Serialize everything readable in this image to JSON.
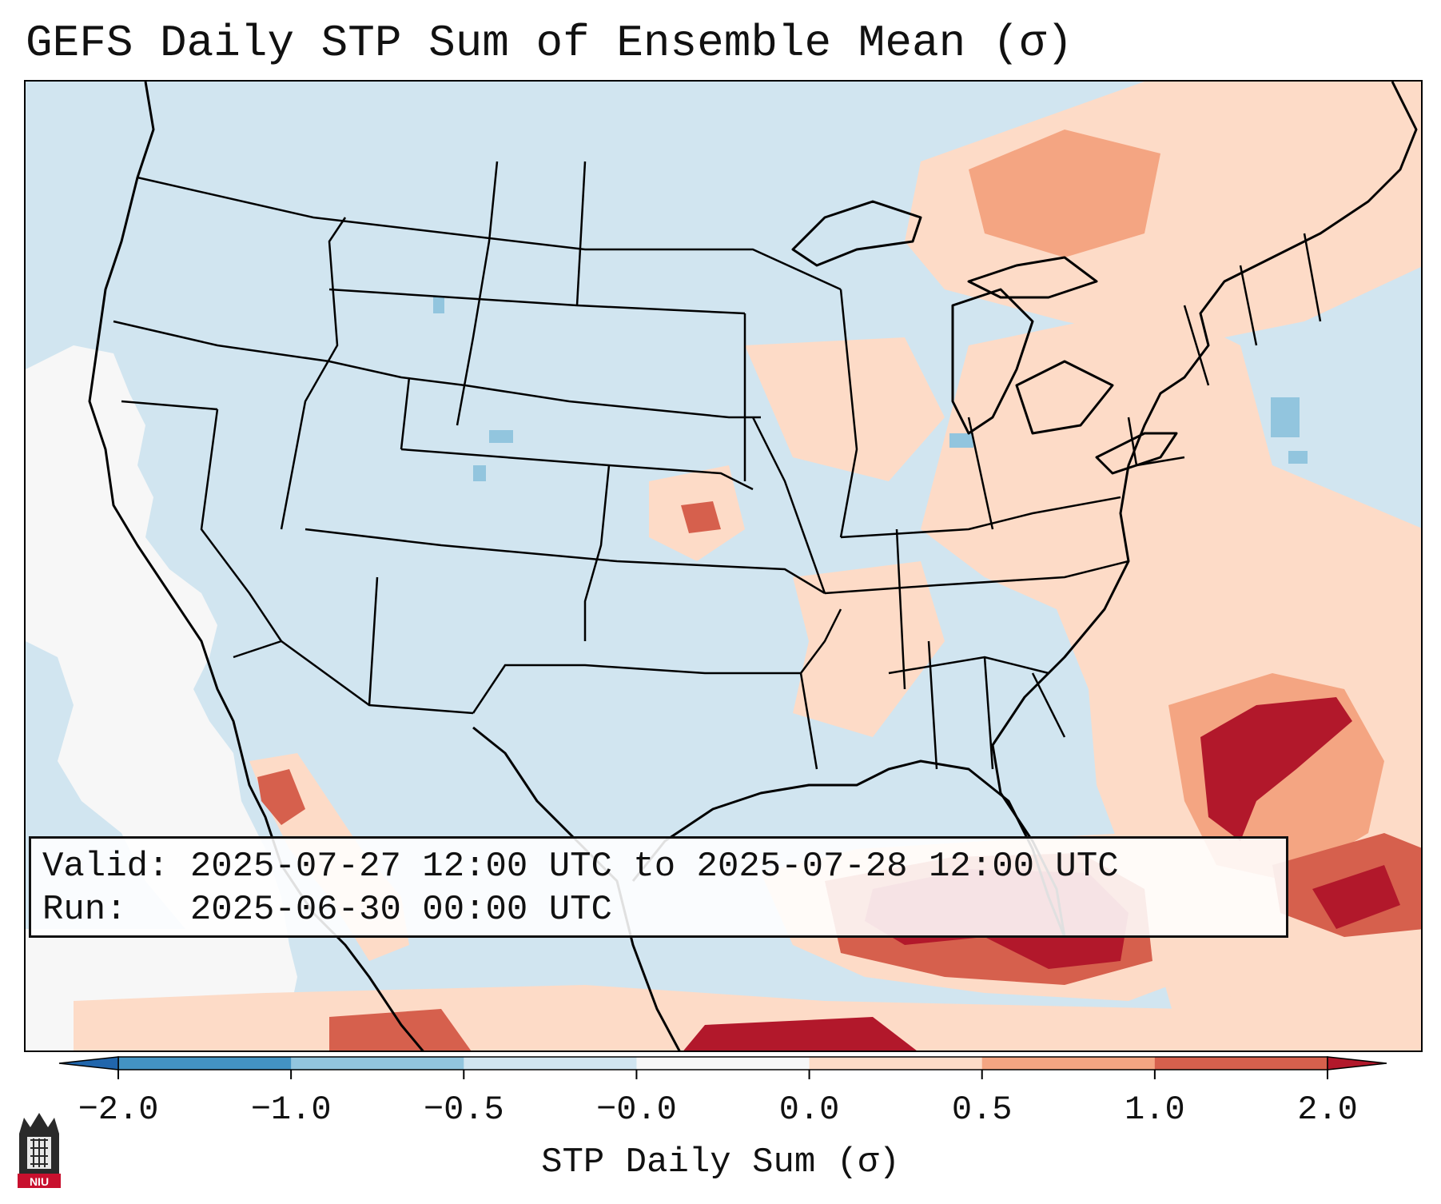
{
  "title": "GEFS Daily STP Sum of Ensemble Mean (σ)",
  "info": {
    "valid_label": "Valid:",
    "valid_value": "2025-07-27 12:00 UTC to 2025-07-28 12:00 UTC",
    "run_label": "Run:",
    "run_value": "2025-06-30 00:00 UTC"
  },
  "colorbar": {
    "label": "STP Daily Sum (σ)",
    "ticks": [
      "−2.0",
      "−1.0",
      "−0.5",
      "−0.0",
      "0.0",
      "0.5",
      "1.0",
      "2.0"
    ],
    "colors": [
      "#4393c3",
      "#92c5de",
      "#d1e5f0",
      "#f7f7f7",
      "#fddbc7",
      "#f4a582",
      "#d6604d",
      "#b2182b"
    ],
    "extend_low_color": "#2166ac",
    "extend_high_color": "#b2182b"
  },
  "logo_text": "NIU",
  "colors": {
    "ocean_background": "#d1e5f0",
    "border": "#111111"
  }
}
